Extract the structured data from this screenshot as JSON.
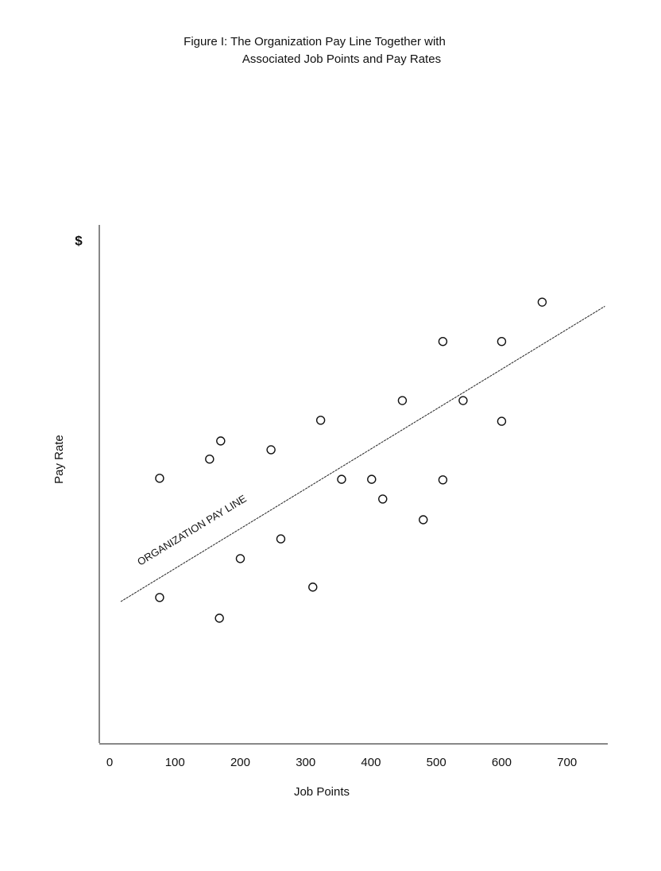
{
  "chart_data": {
    "type": "scatter",
    "title": [
      "Figure I:  The Organization Pay Line Together with",
      "Associated Job Points and Pay Rates"
    ],
    "x_label": "Job Points",
    "y_label": "Pay Rate",
    "y_unit": "$",
    "x": [
      76.5,
      76.5,
      153,
      170,
      168,
      200,
      247,
      262,
      311,
      323,
      355,
      401,
      418,
      448,
      480,
      510,
      510,
      541,
      600,
      600,
      662
    ],
    "values": [
      51.1,
      28.1,
      54.8,
      58.3,
      24.1,
      35.6,
      56.6,
      39.4,
      30.1,
      62.3,
      50.9,
      50.9,
      47.1,
      66.1,
      43.1,
      77.5,
      50.8,
      66.1,
      77.5,
      62.1,
      85.1
    ],
    "pay_line": {
      "label": "ORGANIZATION PAY LINE",
      "x": [
        17,
        758
      ],
      "values": [
        27.3,
        84.3
      ]
    },
    "xlim": [
      0,
      760
    ],
    "ylim": [
      0,
      100
    ],
    "xticks": [
      0,
      100,
      200,
      300,
      400,
      500,
      600,
      700
    ]
  }
}
